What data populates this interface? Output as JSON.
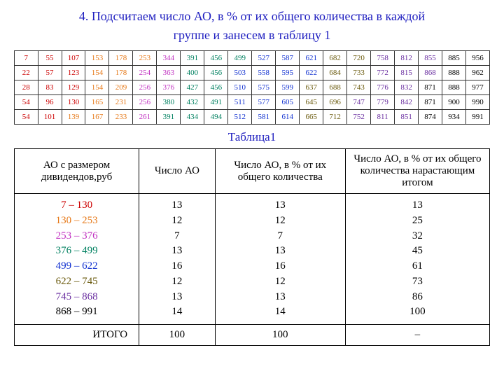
{
  "title_line1": "4. Подсчитаем число АО, в % от их общего количества в каждой",
  "title_line2": "группе и занесем в таблицу 1",
  "caption": "Таблица1",
  "colors": {
    "red": "#cc0000",
    "orange": "#e67817",
    "magenta": "#c030c0",
    "teal": "#008060",
    "blue": "#1030d0",
    "olive": "#6b5b0f",
    "purple": "#6a2fa0",
    "black": "#000000"
  },
  "grid": [
    [
      7,
      55,
      107,
      153,
      178,
      253,
      344,
      391,
      456,
      499,
      527,
      587,
      621,
      682,
      720,
      758,
      812,
      855,
      885,
      956
    ],
    [
      22,
      57,
      123,
      154,
      178,
      254,
      363,
      400,
      456,
      503,
      558,
      595,
      622,
      684,
      733,
      772,
      815,
      868,
      888,
      962
    ],
    [
      28,
      83,
      129,
      154,
      209,
      256,
      376,
      427,
      456,
      510,
      575,
      599,
      637,
      688,
      743,
      776,
      832,
      871,
      888,
      977
    ],
    [
      54,
      96,
      130,
      165,
      231,
      256,
      380,
      432,
      491,
      511,
      577,
      605,
      645,
      696,
      747,
      779,
      842,
      871,
      900,
      990
    ],
    [
      54,
      101,
      139,
      167,
      233,
      261,
      391,
      434,
      494,
      512,
      581,
      614,
      665,
      712,
      752,
      811,
      851,
      874,
      934,
      991
    ]
  ],
  "thresholds": [
    130,
    253,
    376,
    499,
    622,
    745,
    868
  ],
  "table": {
    "headers": [
      "АО с размером дивидендов,руб",
      "Число АО",
      "Число АО, в % от их общего количества",
      "Число АО, в % от их общего количества нарастающим итогом"
    ],
    "ranges": [
      "7 – 130",
      "130 – 253",
      "253 – 376",
      "376 – 499",
      "499 – 622",
      "622 – 745",
      "745 – 868",
      "868 – 991"
    ],
    "range_colors": [
      "red",
      "orange",
      "magenta",
      "teal",
      "blue",
      "olive",
      "purple",
      "black"
    ],
    "count": [
      13,
      12,
      7,
      13,
      16,
      12,
      13,
      14
    ],
    "percent": [
      13,
      12,
      7,
      13,
      16,
      12,
      13,
      14
    ],
    "cumulative": [
      13,
      25,
      32,
      45,
      61,
      73,
      86,
      100
    ],
    "total_label": "ИТОГО",
    "total_count": "100",
    "total_percent": "100",
    "total_cum": "–"
  }
}
